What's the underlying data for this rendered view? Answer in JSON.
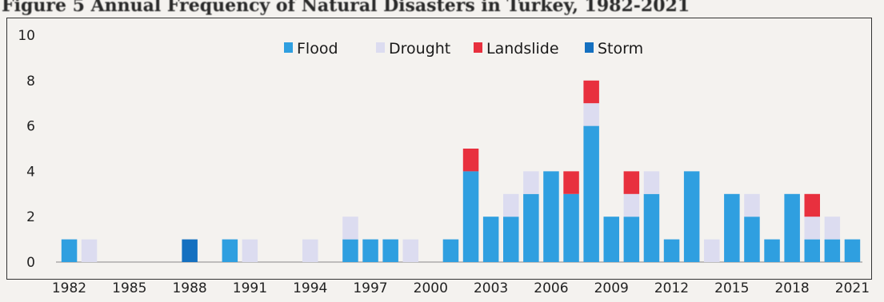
{
  "caption": "Figure 5 Annual Frequency of Natural Disasters in Turkey, 1982-2021",
  "colors": {
    "flood": "#2f9fe0",
    "drought": "#dcdcf0",
    "landslide": "#e8303e",
    "storm": "#1470c0"
  },
  "chart_data": {
    "type": "bar",
    "stacked": true,
    "title": "",
    "xlabel": "",
    "ylabel": "",
    "ylim": [
      0,
      10
    ],
    "yticks": [
      0,
      2,
      4,
      6,
      8,
      10
    ],
    "legend_position": "top-center",
    "grid": false,
    "categories": [
      1982,
      1983,
      1984,
      1985,
      1986,
      1987,
      1988,
      1989,
      1990,
      1991,
      1992,
      1993,
      1994,
      1995,
      1996,
      1997,
      1998,
      1999,
      2000,
      2001,
      2002,
      2003,
      2004,
      2005,
      2006,
      2007,
      2008,
      2009,
      2010,
      2011,
      2012,
      2013,
      2014,
      2015,
      2016,
      2017,
      2018,
      2019,
      2020,
      2021
    ],
    "xtick_labels": [
      "1982",
      "1985",
      "1988",
      "1991",
      "1994",
      "1997",
      "2000",
      "2003",
      "2006",
      "2009",
      "2012",
      "2015",
      "2018",
      "2021"
    ],
    "series": [
      {
        "name": "Flood",
        "color": "#2f9fe0",
        "values": [
          1,
          0,
          0,
          0,
          0,
          0,
          0,
          0,
          1,
          0,
          0,
          0,
          0,
          0,
          1,
          1,
          1,
          0,
          0,
          1,
          4,
          2,
          2,
          3,
          4,
          3,
          6,
          2,
          2,
          3,
          1,
          4,
          0,
          3,
          2,
          1,
          3,
          1,
          1,
          1
        ]
      },
      {
        "name": "Drought",
        "color": "#dcdcf0",
        "values": [
          0,
          1,
          0,
          0,
          0,
          0,
          0,
          0,
          0,
          1,
          0,
          0,
          1,
          0,
          1,
          0,
          0,
          1,
          0,
          0,
          0,
          0,
          1,
          1,
          0,
          0,
          1,
          0,
          1,
          1,
          0,
          0,
          1,
          0,
          1,
          0,
          0,
          1,
          1,
          0
        ]
      },
      {
        "name": "Landslide",
        "color": "#e8303e",
        "values": [
          0,
          0,
          0,
          0,
          0,
          0,
          0,
          0,
          0,
          0,
          0,
          0,
          0,
          0,
          0,
          0,
          0,
          0,
          0,
          0,
          1,
          0,
          0,
          0,
          0,
          1,
          1,
          0,
          1,
          0,
          0,
          0,
          0,
          0,
          0,
          0,
          0,
          1,
          0,
          0
        ]
      },
      {
        "name": "Storm",
        "color": "#1470c0",
        "values": [
          0,
          0,
          0,
          0,
          0,
          0,
          1,
          0,
          0,
          0,
          0,
          0,
          0,
          0,
          0,
          0,
          0,
          0,
          0,
          0,
          0,
          0,
          0,
          0,
          0,
          0,
          0,
          0,
          0,
          0,
          0,
          0,
          0,
          0,
          0,
          0,
          0,
          0,
          0,
          0
        ]
      }
    ]
  }
}
